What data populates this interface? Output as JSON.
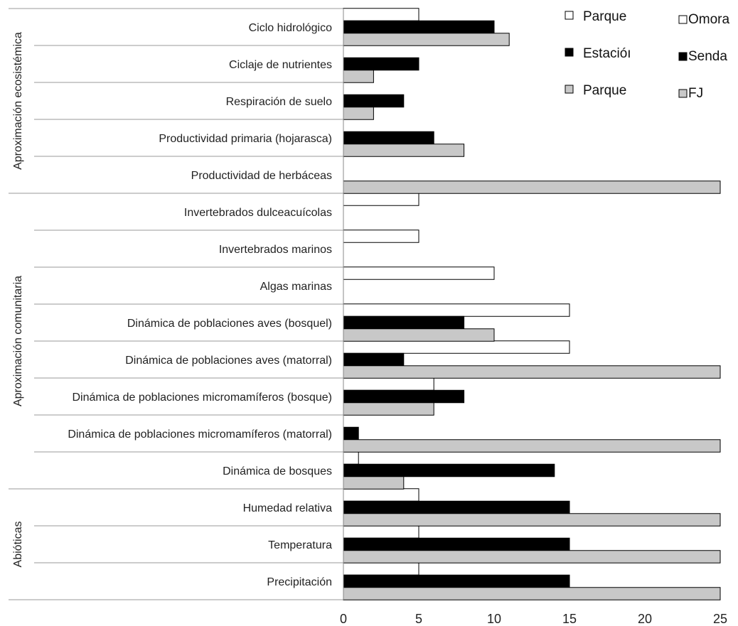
{
  "chart_data": {
    "type": "bar",
    "orientation": "horizontal",
    "categories": [
      "Ciclo hidrológico",
      "Ciclaje de nutrientes",
      "Respiración de suelo",
      "Productividad primaria (hojarasca)",
      "Productividad de herbáceas",
      "Invertebrados dulceacuícolas",
      "Invertebrados marinos",
      "Algas marinas",
      "Dinámica de poblaciones aves (bosquel)",
      "Dinámica de poblaciones aves (matorral)",
      "Dinámica de poblaciones micromamíferos (bosque)",
      "Dinámica de poblaciones micromamíferos (matorral)",
      "Dinámica de bosques",
      "Humedad relativa",
      "Temperatura",
      "Precipitación"
    ],
    "groups": [
      {
        "label": "Aproximación ecosistémica",
        "count": 5
      },
      {
        "label": "Aproximación comunitaria",
        "count": 8
      },
      {
        "label": "Abióticas",
        "count": 3
      }
    ],
    "series": [
      {
        "name": "Parque",
        "name2": "Omora",
        "color": "#ffffff",
        "values": [
          5,
          0,
          0,
          0,
          0,
          5,
          5,
          10,
          15,
          15,
          6,
          0,
          1,
          5,
          5,
          5
        ]
      },
      {
        "name": "Estacióı",
        "name2": "Senda",
        "color": "#000000",
        "values": [
          10,
          5,
          4,
          6,
          0,
          0,
          0,
          0,
          8,
          4,
          8,
          1,
          14,
          15,
          15,
          15
        ]
      },
      {
        "name": "Parque",
        "name2": "FJ",
        "color": "#c8c8c8",
        "values": [
          11,
          2,
          2,
          8,
          25,
          0,
          0,
          0,
          10,
          25,
          6,
          25,
          4,
          25,
          25,
          25
        ]
      }
    ],
    "xlim": [
      0,
      25
    ],
    "xticks": [
      "0",
      "5",
      "10",
      "15",
      "20",
      "25"
    ],
    "legend_position": "top-right"
  }
}
